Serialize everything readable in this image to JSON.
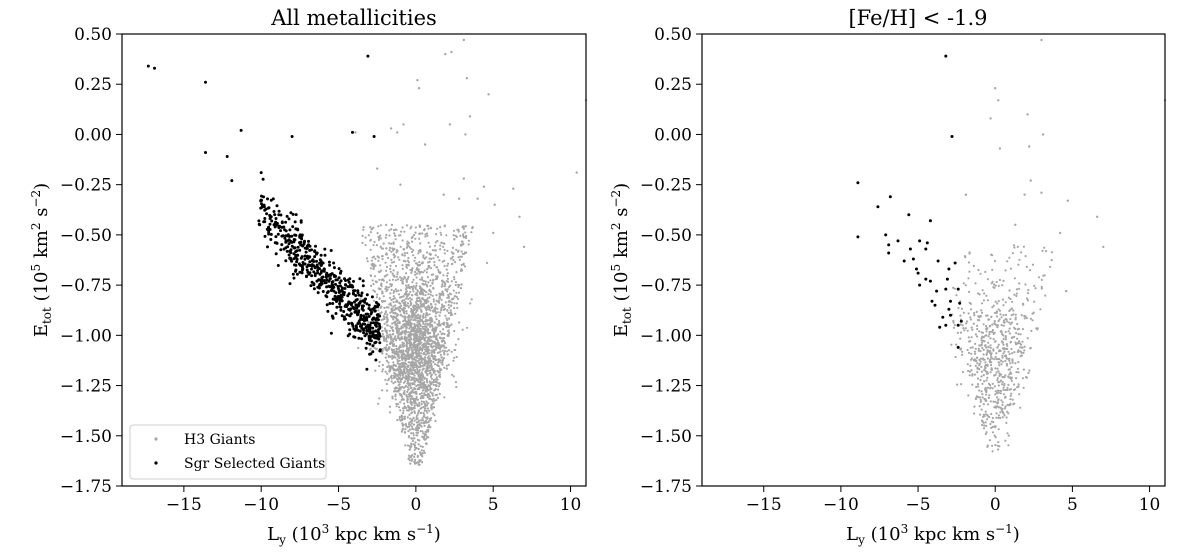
{
  "chart_data": [
    {
      "type": "scatter",
      "title": "All metallicities",
      "xlabel": "L_y (10^3 kpc km s^-1)",
      "ylabel": "E_tot (10^5 km^2 s^-2)",
      "xlim": [
        -19,
        11
      ],
      "ylim": [
        -1.75,
        0.5
      ],
      "xticks": [
        -15,
        -10,
        -5,
        0,
        5,
        10
      ],
      "xtick_labels": [
        "−15",
        "−10",
        "−5",
        "0",
        "5",
        "10"
      ],
      "yticks": [
        0.5,
        0.25,
        0.0,
        -0.25,
        -0.5,
        -0.75,
        -1.0,
        -1.25,
        -1.5,
        -1.75
      ],
      "ytick_labels": [
        "0.50",
        "0.25",
        "0.00",
        "−0.25",
        "−0.50",
        "−0.75",
        "−1.00",
        "−1.25",
        "−1.50",
        "−1.75"
      ],
      "legend": {
        "placement": "lower-left",
        "entries": [
          "H3 Giants",
          "Sgr Selected Giants"
        ]
      },
      "series": [
        {
          "name": "H3 Giants",
          "color": "#a6a6a6",
          "points": [
            [
              3.1,
              0.47
            ],
            [
              2.3,
              0.41
            ],
            [
              1.9,
              0.4
            ],
            [
              0.1,
              0.27
            ],
            [
              3.3,
              0.28
            ],
            [
              3.5,
              0.09
            ],
            [
              4.7,
              0.2
            ],
            [
              0.2,
              0.23
            ],
            [
              2.2,
              0.05
            ],
            [
              3.2,
              0.0
            ],
            [
              -0.8,
              0.05
            ],
            [
              -1.2,
              0.01
            ],
            [
              -3.9,
              0.01
            ],
            [
              -1.6,
              0.03
            ],
            [
              0.6,
              -0.05
            ],
            [
              3.1,
              -0.22
            ],
            [
              4.4,
              -0.26
            ],
            [
              5.1,
              -0.35
            ],
            [
              6.3,
              -0.27
            ],
            [
              6.7,
              -0.41
            ],
            [
              7.0,
              -0.56
            ],
            [
              10.4,
              -0.19
            ],
            [
              11.0,
              0.17
            ],
            [
              -2.5,
              -0.17
            ],
            [
              -1.0,
              -0.25
            ],
            [
              1.8,
              -0.3
            ],
            [
              2.8,
              -0.32
            ],
            [
              4.0,
              -0.32
            ],
            [
              5.0,
              -0.49
            ]
          ],
          "core": {
            "ly_range": [
              -4.5,
              3.2
            ],
            "e_range": [
              -1.65,
              -0.45
            ],
            "densest": {
              "ly": 0.0,
              "e": -1.05
            }
          }
        },
        {
          "name": "Sgr Selected Giants",
          "color": "#000000",
          "points": [
            [
              -17.3,
              0.34
            ],
            [
              -16.9,
              0.33
            ],
            [
              -13.6,
              0.26
            ],
            [
              -11.3,
              0.02
            ],
            [
              -8.0,
              -0.01
            ],
            [
              -4.1,
              0.01
            ],
            [
              -3.1,
              0.39
            ],
            [
              -2.7,
              -0.01
            ],
            [
              -13.6,
              -0.09
            ],
            [
              -12.2,
              -0.11
            ],
            [
              -11.9,
              -0.23
            ],
            [
              -10.0,
              -0.19
            ],
            [
              -10.1,
              -0.45
            ]
          ],
          "band": {
            "ly_range": [
              -10.2,
              -2.3
            ],
            "e_at_min_ly": -0.36,
            "e_at_max_ly": -1.0,
            "thickness": 0.13
          }
        }
      ]
    },
    {
      "type": "scatter",
      "title": "[Fe/H] < -1.9",
      "xlabel": "L_y (10^3 kpc km s^-1)",
      "ylabel": "E_tot (10^5 km^2 s^-2)",
      "xlim": [
        -19,
        11
      ],
      "ylim": [
        -1.75,
        0.5
      ],
      "xticks": [
        -15,
        -10,
        -5,
        0,
        5,
        10
      ],
      "xtick_labels": [
        "−15",
        "−10",
        "−5",
        "0",
        "5",
        "10"
      ],
      "yticks": [
        0.5,
        0.25,
        0.0,
        -0.25,
        -0.5,
        -0.75,
        -1.0,
        -1.25,
        -1.5,
        -1.75
      ],
      "ytick_labels": [
        "0.50",
        "0.25",
        "0.00",
        "−0.25",
        "−0.50",
        "−0.75",
        "−1.00",
        "−1.25",
        "−1.50",
        "−1.75"
      ],
      "series": [
        {
          "name": "H3 Giants",
          "color": "#a6a6a6",
          "points": [
            [
              3.0,
              0.47
            ],
            [
              0.0,
              0.23
            ],
            [
              0.2,
              0.17
            ],
            [
              2.1,
              0.1
            ],
            [
              3.1,
              0.0
            ],
            [
              11.0,
              0.17
            ],
            [
              2.3,
              -0.23
            ],
            [
              1.9,
              -0.3
            ],
            [
              3.0,
              -0.29
            ],
            [
              -1.9,
              -0.3
            ],
            [
              4.7,
              -0.33
            ],
            [
              6.6,
              -0.41
            ],
            [
              7.0,
              -0.56
            ],
            [
              0.3,
              -0.07
            ],
            [
              -0.3,
              0.08
            ],
            [
              2.2,
              -0.06
            ],
            [
              1.3,
              -0.45
            ],
            [
              4.2,
              -0.49
            ],
            [
              4.6,
              -0.78
            ]
          ],
          "core": {
            "ly_range": [
              -2.8,
              3.6
            ],
            "e_range": [
              -1.6,
              -0.55
            ],
            "densest": {
              "ly": 0.0,
              "e": -1.1
            }
          }
        },
        {
          "name": "Sgr Selected Giants",
          "color": "#000000",
          "points": [
            [
              -3.2,
              0.39
            ],
            [
              -2.8,
              -0.01
            ],
            [
              -8.9,
              -0.24
            ],
            [
              -8.9,
              -0.51
            ],
            [
              -6.8,
              -0.31
            ],
            [
              -7.6,
              -0.36
            ],
            [
              -7.1,
              -0.5
            ],
            [
              -6.9,
              -0.55
            ],
            [
              -5.6,
              -0.4
            ],
            [
              -4.2,
              -0.43
            ],
            [
              -4.9,
              -0.53
            ],
            [
              -4.4,
              -0.54
            ],
            [
              -6.3,
              -0.53
            ],
            [
              -6.9,
              -0.59
            ],
            [
              -5.9,
              -0.63
            ],
            [
              -5.3,
              -0.62
            ],
            [
              -5.1,
              -0.67
            ],
            [
              -4.5,
              -0.57
            ],
            [
              -3.7,
              -0.63
            ],
            [
              -3.0,
              -0.67
            ],
            [
              -4.5,
              -0.72
            ],
            [
              -4.2,
              -0.73
            ],
            [
              -3.8,
              -0.78
            ],
            [
              -3.2,
              -0.77
            ],
            [
              -2.4,
              -0.77
            ],
            [
              -2.3,
              -0.84
            ],
            [
              -3.0,
              -0.87
            ],
            [
              -3.4,
              -0.91
            ],
            [
              -3.2,
              -0.95
            ],
            [
              -3.6,
              -0.96
            ],
            [
              -2.4,
              -0.95
            ],
            [
              -2.4,
              -1.06
            ],
            [
              -2.2,
              -0.93
            ],
            [
              -3.9,
              -0.85
            ],
            [
              -4.9,
              -0.75
            ],
            [
              -4.1,
              -0.83
            ],
            [
              -2.9,
              -0.83
            ],
            [
              -2.6,
              -0.64
            ],
            [
              -2.9,
              -0.9
            ],
            [
              -5.0,
              -0.69
            ],
            [
              -5.5,
              -0.57
            ],
            [
              -3.1,
              -0.72
            ]
          ]
        }
      ]
    }
  ]
}
